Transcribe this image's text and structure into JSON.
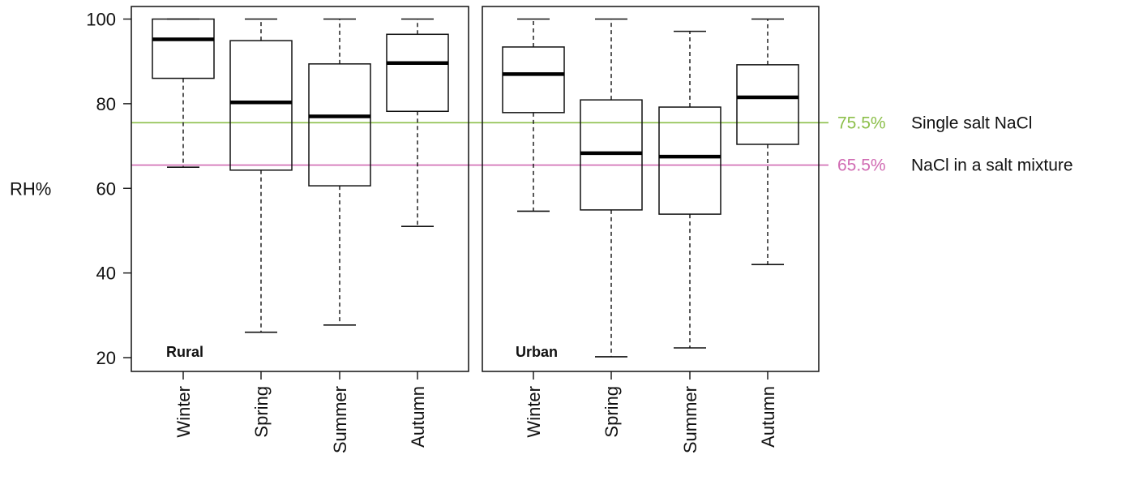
{
  "chart_data": {
    "type": "box",
    "ylabel": "RH%",
    "ylim": [
      20,
      100
    ],
    "yticks": [
      20,
      40,
      60,
      80,
      100
    ],
    "categories": [
      "Winter",
      "Spring",
      "Summer",
      "Autumn"
    ],
    "grid": false,
    "panels": [
      {
        "label": "Rural",
        "boxes": [
          {
            "category": "Winter",
            "min": 65,
            "q1": 86,
            "median": 95.2,
            "q3": 100,
            "max": 100
          },
          {
            "category": "Spring",
            "min": 26,
            "q1": 64.3,
            "median": 80.3,
            "q3": 94.9,
            "max": 100
          },
          {
            "category": "Summer",
            "min": 27.7,
            "q1": 60.6,
            "median": 77,
            "q3": 89.4,
            "max": 100
          },
          {
            "category": "Autumn",
            "min": 51,
            "q1": 78.2,
            "median": 89.6,
            "q3": 96.4,
            "max": 100
          }
        ]
      },
      {
        "label": "Urban",
        "boxes": [
          {
            "category": "Winter",
            "min": 54.6,
            "q1": 77.9,
            "median": 87,
            "q3": 93.4,
            "max": 100
          },
          {
            "category": "Spring",
            "min": 20.2,
            "q1": 54.9,
            "median": 68.3,
            "q3": 80.9,
            "max": 100
          },
          {
            "category": "Summer",
            "min": 22.3,
            "q1": 53.9,
            "median": 67.5,
            "q3": 79.2,
            "max": 97.1
          },
          {
            "category": "Autumn",
            "min": 42,
            "q1": 70.4,
            "median": 81.5,
            "q3": 89.2,
            "max": 100
          }
        ]
      }
    ],
    "reference_lines": [
      {
        "value": 75.5,
        "value_label": "75.5%",
        "label": "Single salt NaCl",
        "color": "#8cbf4a"
      },
      {
        "value": 65.5,
        "value_label": "65.5%",
        "label": "NaCl in a salt mixture",
        "color": "#d06ab2"
      }
    ]
  }
}
